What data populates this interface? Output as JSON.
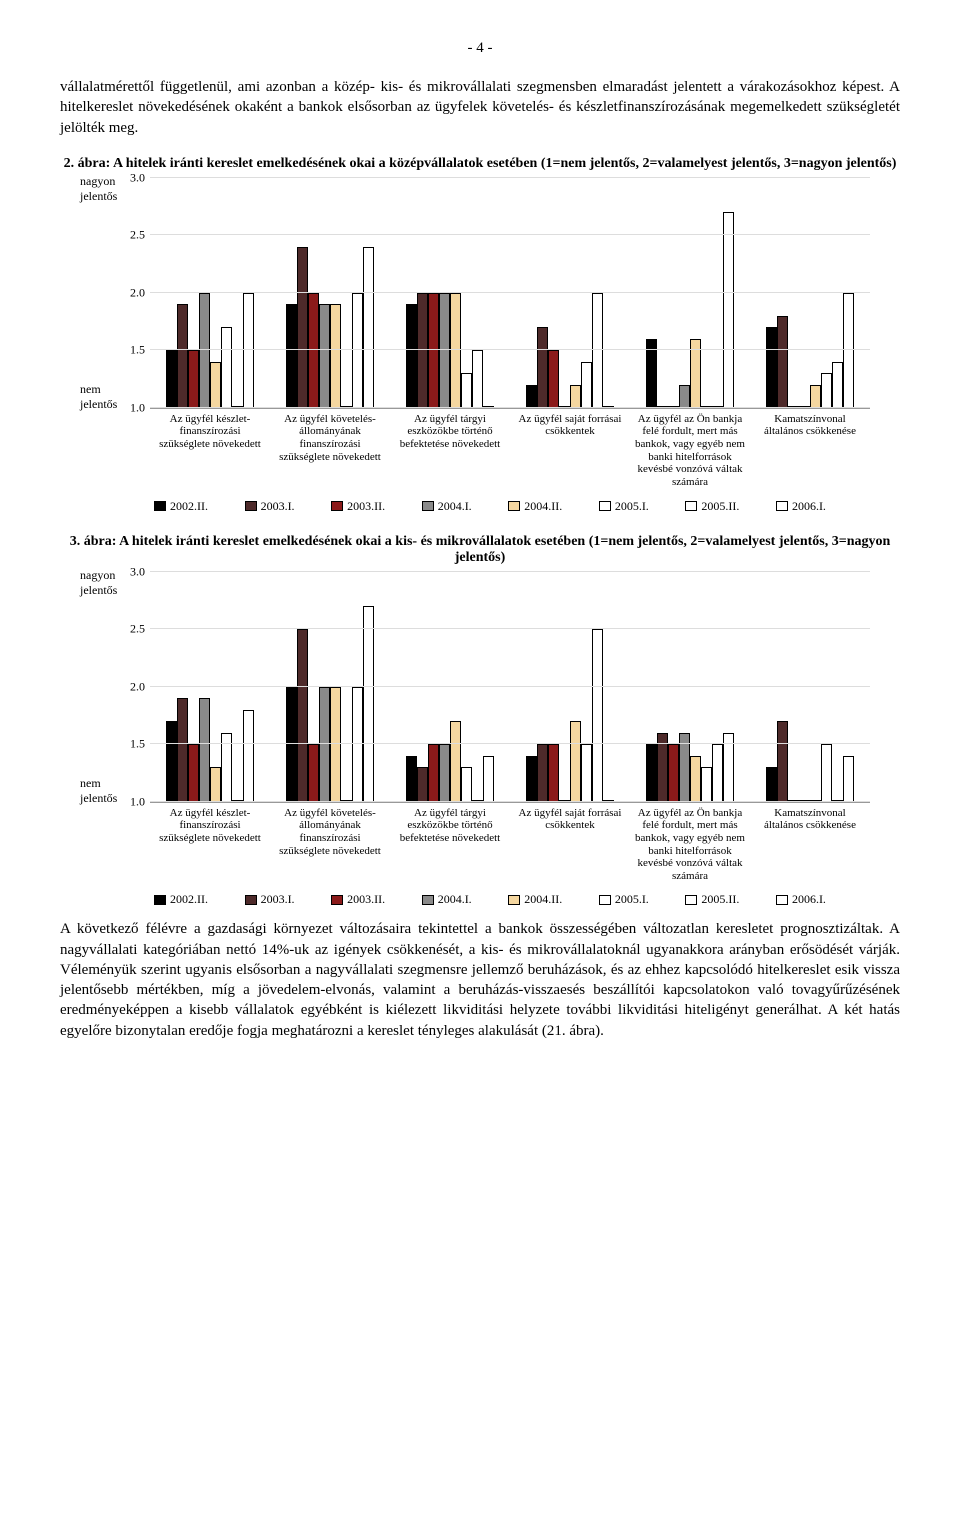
{
  "page_number": "- 4 -",
  "para1": "vállalatmérettől függetlenül, ami azonban a közép- kis- és mikrovállalati szegmensben elmaradást jelentett a várakozásokhoz képest. A hitelkereslet növekedésének okaként a bankok elsősorban az ügyfelek követelés- és készletfinanszírozásának megemelkedett szükségletét jelölték meg.",
  "para2": "A következő félévre a gazdasági környezet változásaira tekintettel a bankok összességében változatlan keresletet prognosztizáltak. A nagyvállalati kategóriában nettó 14%-uk az igények csökkenését, a kis- és mikrovállalatoknál ugyanakkora arányban erősödését várják. Véleményük szerint ugyanis elsősorban a nagyvállalati szegmensre jellemző beruházások, és az ehhez kapcsolódó hitelkereslet esik vissza jelentősebb mértékben, míg a jövedelem-elvonás, valamint a beruházás-visszaesés beszállítói kapcsolatokon való tovagyűrűzésének eredményeképpen a kisebb vállalatok egyébként is kiélezett likviditási helyzete további likviditási hiteligényt generálhat. A két hatás egyelőre bizonytalan eredője fogja meghatározni a kereslet tényleges alakulását (21. ábra).",
  "y_axis_top_label": "nagyon jelentős",
  "y_axis_bot_label": "nem jelentős",
  "categories": [
    "Az ügyfél készlet-finanszírozási szükséglete növekedett",
    "Az ügyfél követelés-állományának finanszírozási szükséglete növekedett",
    "Az ügyfél tárgyi eszközökbe történő befektetése növekedett",
    "Az ügyfél saját forrásai csökkentek",
    "Az ügyfél az Ön bankja felé fordult, mert más bankok, vagy egyéb nem banki hitelforrások kevésbé vonzóvá váltak számára",
    "Kamatszínvonal általános csökkenése"
  ],
  "series": [
    {
      "label": "2002.II.",
      "color": "#000000",
      "border": "#000000"
    },
    {
      "label": "2003.I.",
      "color": "#4e2a2a",
      "border": "#000000"
    },
    {
      "label": "2003.II.",
      "color": "#8b1a1a",
      "border": "#000000"
    },
    {
      "label": "2004.I.",
      "color": "#8a8a8a",
      "border": "#000000"
    },
    {
      "label": "2004.II.",
      "color": "#f5d7a0",
      "border": "#000000"
    },
    {
      "label": "2005.I.",
      "color": "#ffffff",
      "border": "#000000"
    },
    {
      "label": "2005.II.",
      "color": "#ffffff",
      "border": "#000000"
    },
    {
      "label": "2006.I.",
      "color": "#ffffff",
      "border": "#000000"
    }
  ],
  "y_ticks": [
    "1.0",
    "1.5",
    "2.0",
    "2.5",
    "3.0"
  ],
  "y_min": 1.0,
  "y_max": 3.0,
  "chart2": {
    "title": "2. ábra: A hitelek iránti kereslet emelkedésének okai a középvállalatok esetében (1=nem jelentős, 2=valamelyest jelentős, 3=nagyon jelentős)",
    "data": [
      [
        1.5,
        1.9,
        1.5,
        2.0,
        1.4,
        1.7,
        1.0,
        2.0
      ],
      [
        1.9,
        2.4,
        2.0,
        1.9,
        1.9,
        1.0,
        2.0,
        2.4
      ],
      [
        1.9,
        2.0,
        2.0,
        2.0,
        2.0,
        1.3,
        1.5,
        1.0
      ],
      [
        1.2,
        1.7,
        1.5,
        1.0,
        1.2,
        1.4,
        2.0,
        1.0
      ],
      [
        1.6,
        1.0,
        1.0,
        1.2,
        1.6,
        1.0,
        1.0,
        2.7
      ],
      [
        1.7,
        1.8,
        1.0,
        1.0,
        1.2,
        1.3,
        1.4,
        2.0
      ]
    ]
  },
  "chart3": {
    "title": "3. ábra: A hitelek iránti kereslet emelkedésének okai a kis- és mikrovállalatok esetében (1=nem jelentős, 2=valamelyest jelentős, 3=nagyon jelentős)",
    "data": [
      [
        1.7,
        1.9,
        1.5,
        1.9,
        1.3,
        1.6,
        1.0,
        1.8
      ],
      [
        2.0,
        2.5,
        1.5,
        2.0,
        2.0,
        1.0,
        2.0,
        2.7
      ],
      [
        1.4,
        1.3,
        1.5,
        1.5,
        1.7,
        1.3,
        1.0,
        1.4
      ],
      [
        1.4,
        1.5,
        1.5,
        1.0,
        1.7,
        1.5,
        2.5,
        1.0
      ],
      [
        1.5,
        1.6,
        1.5,
        1.6,
        1.4,
        1.3,
        1.5,
        1.6
      ],
      [
        1.3,
        1.7,
        1.0,
        1.0,
        1.0,
        1.5,
        1.0,
        1.4
      ]
    ]
  }
}
